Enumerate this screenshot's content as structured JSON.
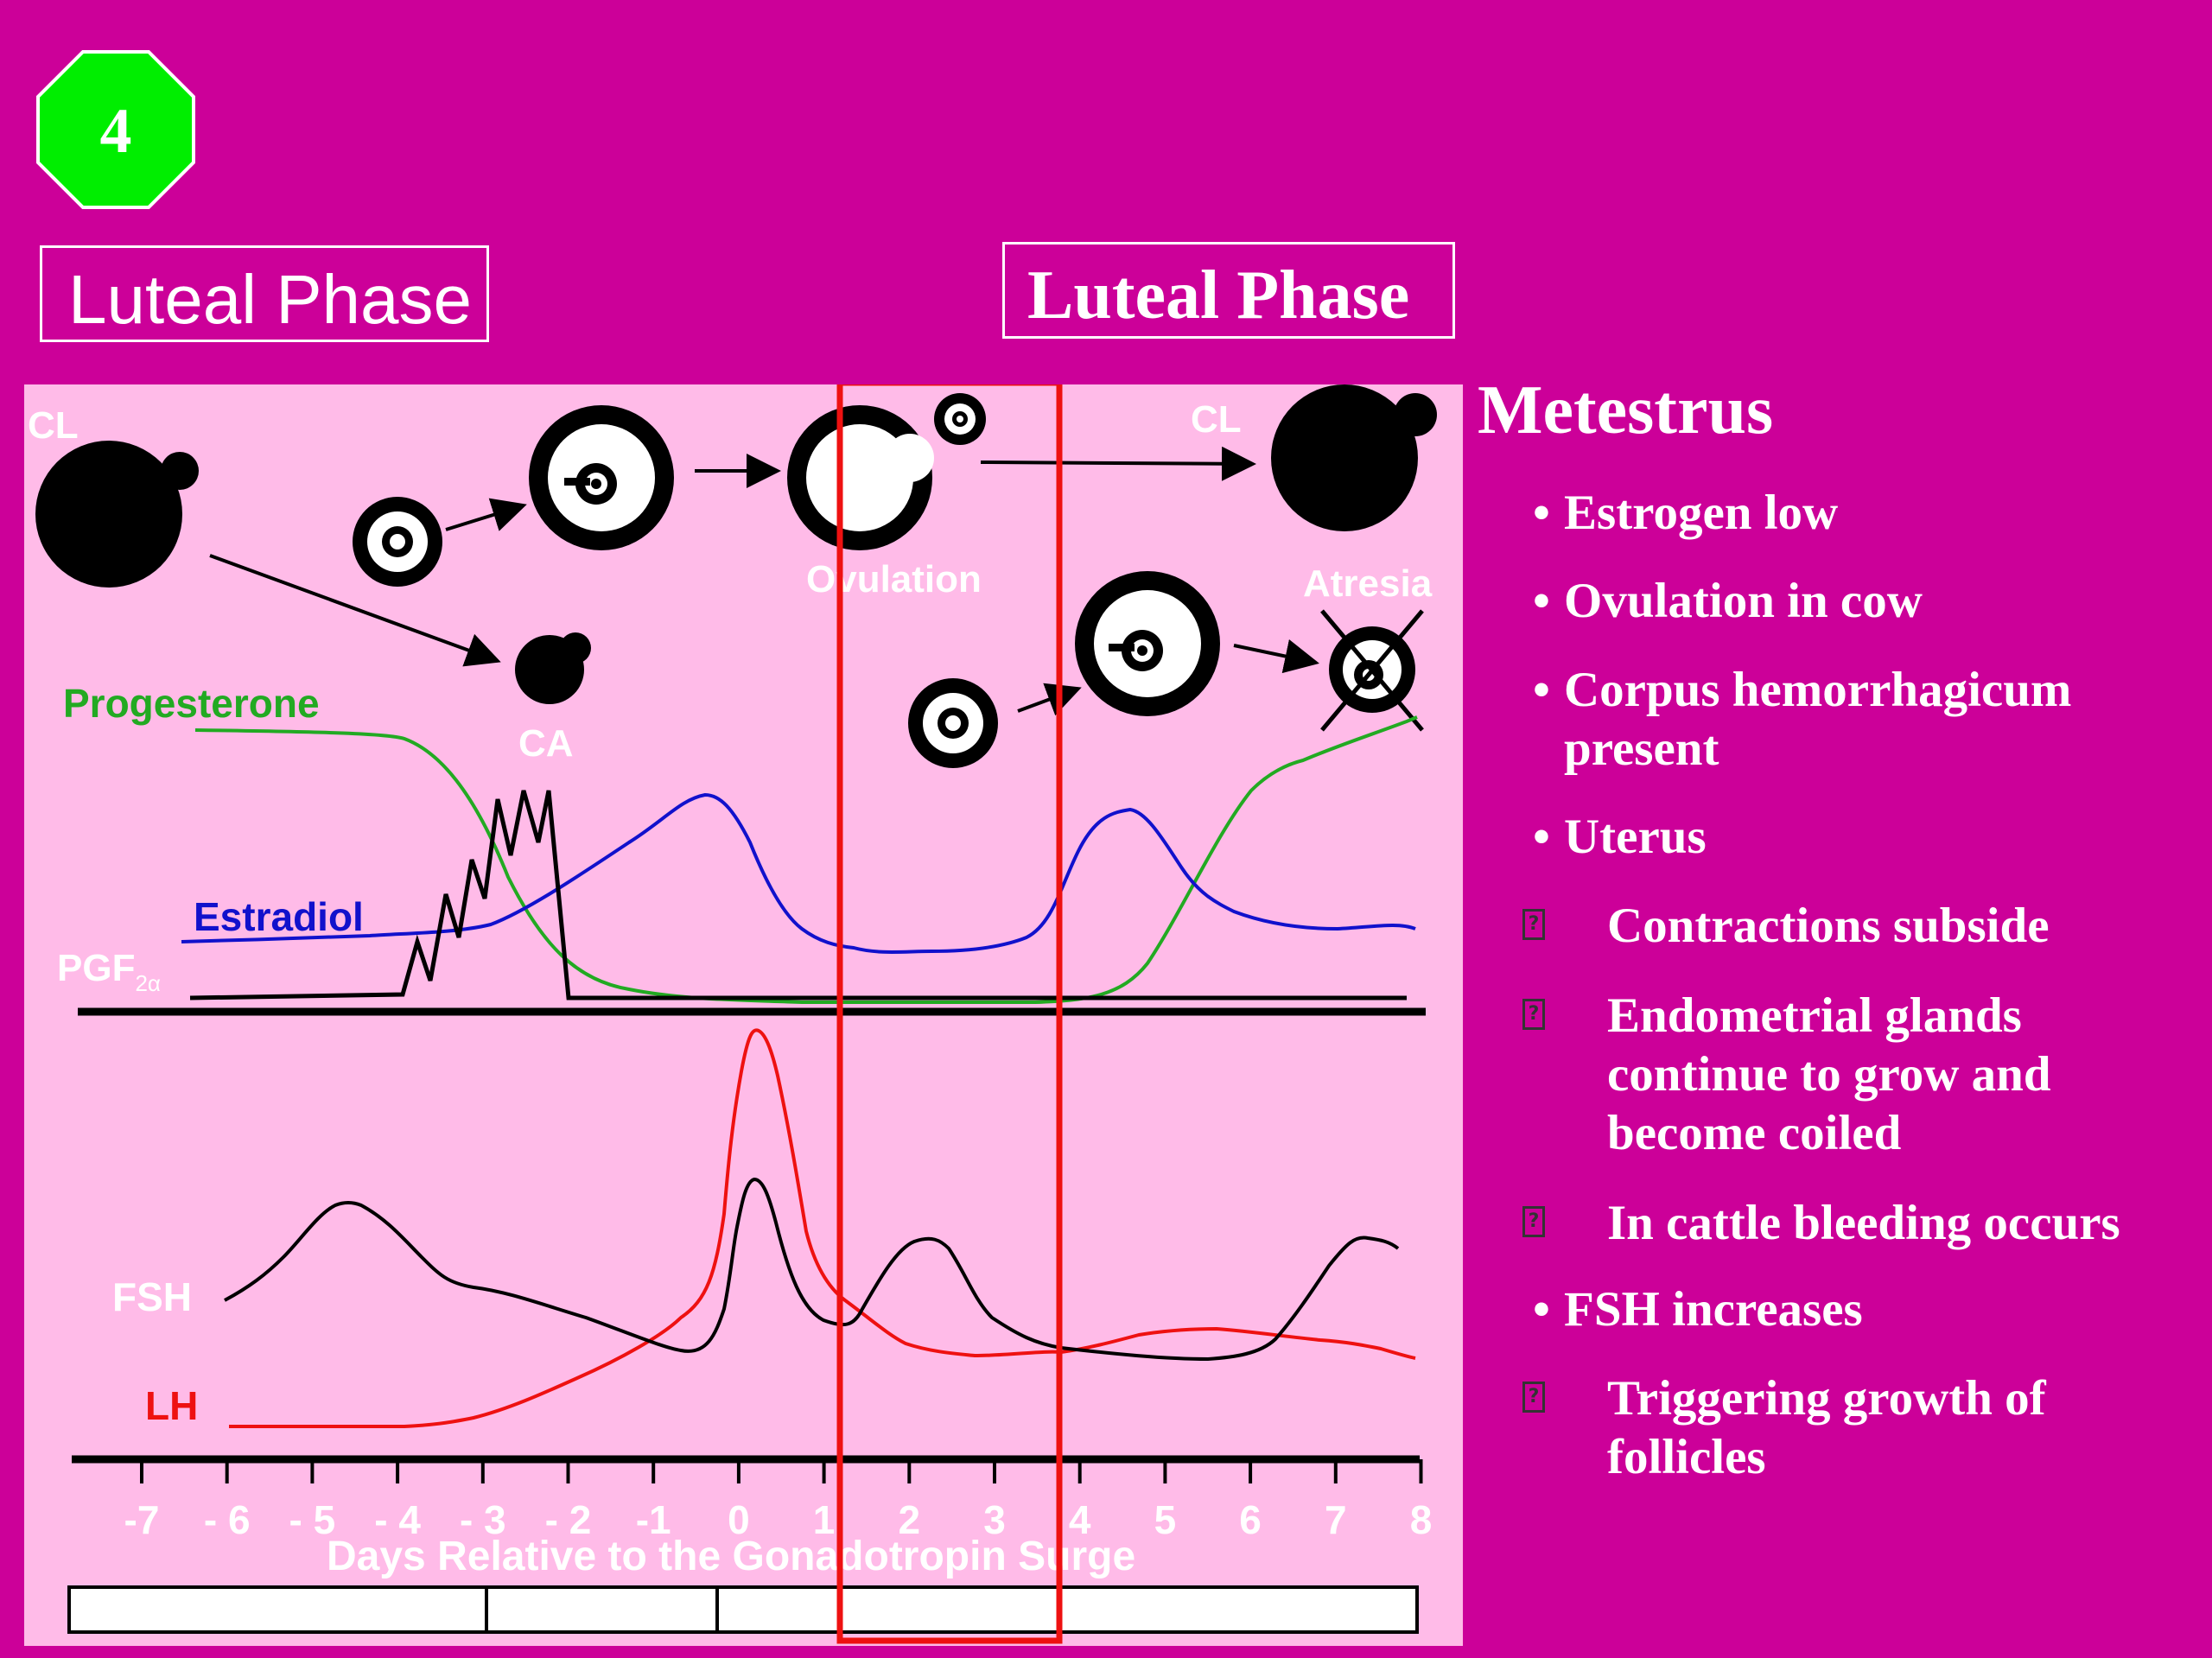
{
  "slide": {
    "badge_number": "4",
    "badge_color": "#00ee00",
    "background_color": "#cc0099",
    "panel_color": "#ffbbe8",
    "phase_label_left": "Luteal Phase",
    "phase_label_right": "Luteal Phase"
  },
  "diagram": {
    "labels": {
      "cl_left": "CL",
      "cl_right": "CL",
      "ovulation": "Ovulation",
      "atresia": "Atresia",
      "ca": "CA",
      "progesterone": "Progesterone",
      "estradiol": "Estradiol",
      "pgf": "PGF",
      "pgf_sub": "2α",
      "fsh": "FSH",
      "lh": "LH",
      "xlabel": "Days Relative to the Gonadotropin Surge"
    },
    "ticks": [
      "-7",
      "- 6",
      "- 5",
      "- 4",
      "- 3",
      "- 2",
      "-1",
      "0",
      "1",
      "2",
      "3",
      "4",
      "5",
      "6",
      "7",
      "8"
    ],
    "colors": {
      "progesterone": "#22aa22",
      "estradiol": "#1111cc",
      "lh": "#ee1111",
      "fsh": "#000000",
      "highlight": "#ee1111"
    }
  },
  "notes": {
    "title": "Metestrus",
    "items": [
      {
        "kind": "bullet",
        "lines": [
          "Estrogen low"
        ]
      },
      {
        "kind": "bullet",
        "lines": [
          "Ovulation in cow"
        ]
      },
      {
        "kind": "bullet",
        "lines": [
          "Corpus hemorrhagicum",
          "present"
        ]
      },
      {
        "kind": "bullet",
        "lines": [
          "Uterus"
        ]
      },
      {
        "kind": "sub",
        "lines": [
          "Contractions subside"
        ]
      },
      {
        "kind": "sub",
        "lines": [
          "Endometrial glands",
          "continue to grow and",
          "become coiled"
        ]
      },
      {
        "kind": "sub",
        "lines": [
          "In cattle bleeding occurs"
        ]
      },
      {
        "kind": "bullet",
        "lines": [
          "FSH increases"
        ]
      },
      {
        "kind": "sub",
        "lines": [
          "Triggering growth of",
          "follicles"
        ]
      }
    ]
  }
}
